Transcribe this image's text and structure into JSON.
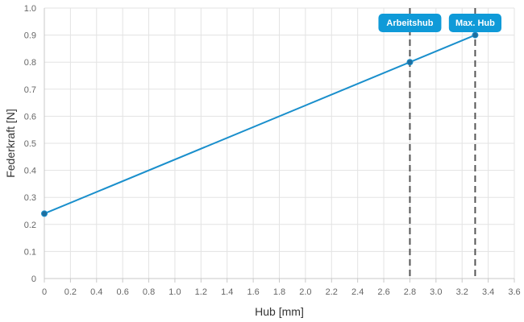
{
  "chart_data": {
    "type": "line",
    "title": "",
    "xlabel": "Hub [mm]",
    "ylabel": "Federkraft [N]",
    "xlim": [
      0,
      3.6
    ],
    "ylim": [
      0,
      1.0
    ],
    "xticks": [
      0,
      0.2,
      0.4,
      0.6,
      0.8,
      1.0,
      1.2,
      1.4,
      1.6,
      1.8,
      2.0,
      2.2,
      2.4,
      2.6,
      2.8,
      3.0,
      3.2,
      3.4,
      3.6
    ],
    "xtick_labels": [
      "0",
      "0.2",
      "0.4",
      "0.6",
      "0.8",
      "1.0",
      "1.2",
      "1.4",
      "1.6",
      "1.8",
      "2.0",
      "2.2",
      "2.4",
      "2.6",
      "2.8",
      "3.0",
      "3.2",
      "3.4",
      "3.6"
    ],
    "yticks": [
      0,
      0.1,
      0.2,
      0.3,
      0.4,
      0.5,
      0.6,
      0.7,
      0.8,
      0.9,
      1.0
    ],
    "ytick_labels": [
      "0",
      "0.1",
      "0.2",
      "0.3",
      "0.4",
      "0.5",
      "0.6",
      "0.7",
      "0.8",
      "0.9",
      "1.0"
    ],
    "grid": true,
    "series": [
      {
        "x": [
          0,
          2.8,
          3.3
        ],
        "y": [
          0.24,
          0.8,
          0.9
        ],
        "color": "#1a8fcc",
        "marker_color": "#1f6e9e"
      }
    ],
    "markers": [
      {
        "label": "Arbeitshub",
        "x": 2.8,
        "color": "#0f9ad8"
      },
      {
        "label": "Max. Hub",
        "x": 3.3,
        "color": "#0f9ad8"
      }
    ]
  }
}
